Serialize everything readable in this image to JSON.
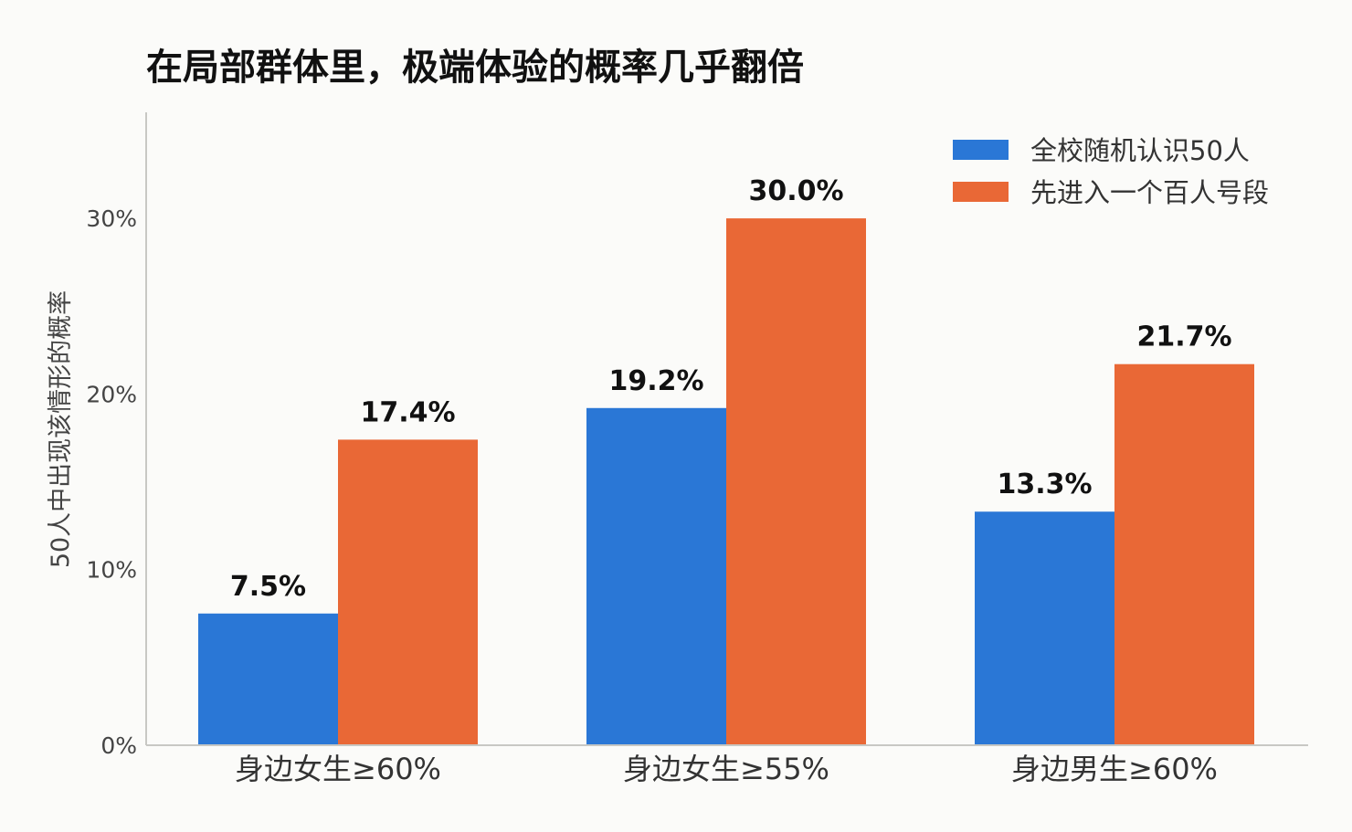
{
  "chart_data": {
    "type": "bar",
    "title": "在局部群体里，极端体验的概率几乎翻倍",
    "ylabel": "50人中出现该情形的概率",
    "xlabel": "",
    "categories": [
      "身边女生≥60%",
      "身边女生≥55%",
      "身边男生≥60%"
    ],
    "series": [
      {
        "name": "全校随机认识50人",
        "values": [
          7.5,
          19.2,
          13.3
        ],
        "labels": [
          "7.5%",
          "19.2%",
          "13.3%"
        ],
        "color": "#2a77d6"
      },
      {
        "name": "先进入一个百人号段",
        "values": [
          17.4,
          30.0,
          21.7
        ],
        "labels": [
          "17.4%",
          "30.0%",
          "21.7%"
        ],
        "color": "#e96836"
      }
    ],
    "ylim": [
      0,
      35
    ],
    "yticks": [
      0,
      10,
      20,
      30
    ],
    "ytick_labels": [
      "0%",
      "10%",
      "20%",
      "30%"
    ],
    "grid": false,
    "legend": "top-right"
  }
}
